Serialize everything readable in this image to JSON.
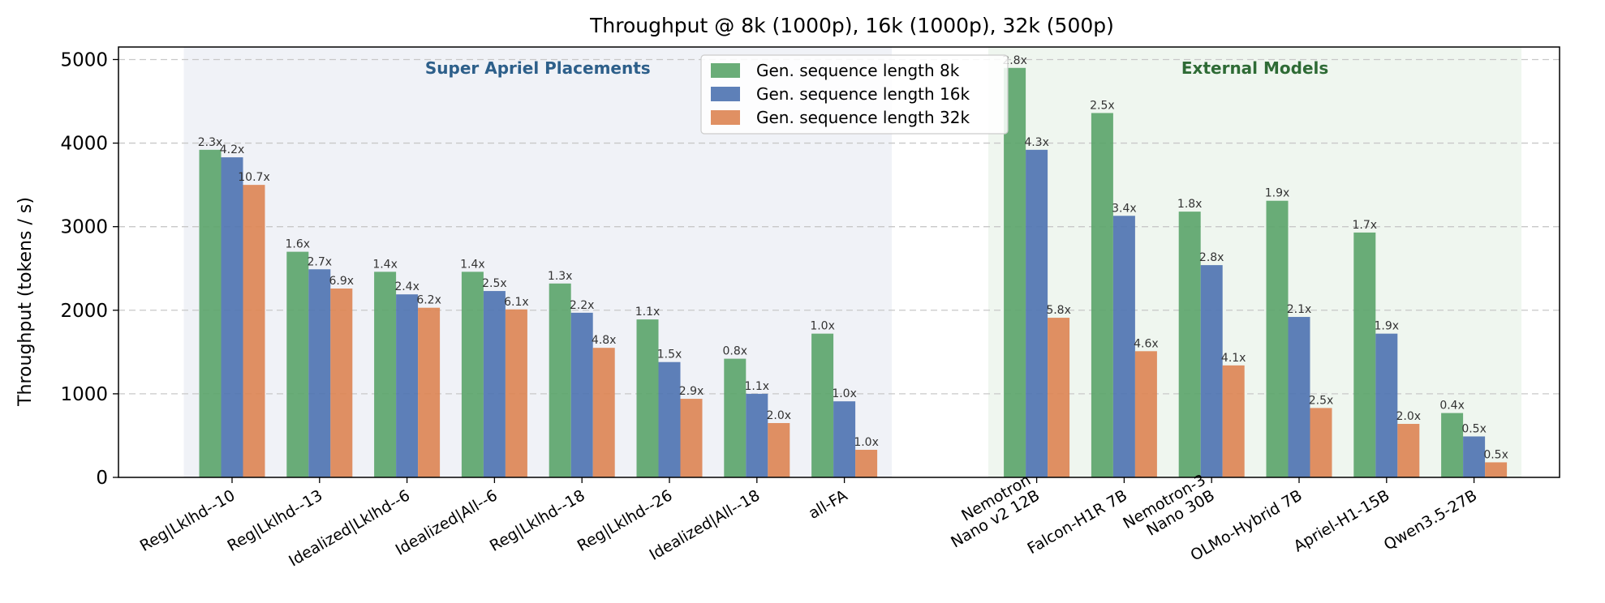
{
  "chart_data": {
    "type": "bar",
    "title": "Throughput @ 8k (1000p), 16k (1000p), 32k (500p)",
    "xlabel": "",
    "ylabel": "Throughput (tokens / s)",
    "ylim": [
      0,
      5150
    ],
    "yticks": [
      0,
      1000,
      2000,
      3000,
      4000,
      5000
    ],
    "grid": "horizontal dashed",
    "legend_position": "top-center",
    "groups": [
      {
        "label": "Super Apriel Placements",
        "color": "#2d5f8a",
        "background": "#e9ecf4",
        "start": 0,
        "end": 7
      },
      {
        "label": "External Models",
        "color": "#2e6b35",
        "background": "#e8f2e8",
        "start": 8,
        "end": 13
      }
    ],
    "categories": [
      "Reg|Lklhd--10",
      "Reg|Lklhd--13",
      "Idealized|Lklhd--6",
      "Idealized|All--6",
      "Reg|Lklhd--18",
      "Reg|Lklhd--26",
      "Idealized|All--18",
      "all-FA",
      "Nemotron\nNano v2 12B",
      "Falcon-H1R 7B",
      "Nemotron-3\nNano 30B",
      "OLMo-Hybrid 7B",
      "Apriel-H1-15B",
      "Qwen3.5-27B"
    ],
    "series": [
      {
        "name": "Gen. sequence length  8k",
        "color": "#5aa469",
        "values": [
          3920,
          2700,
          2460,
          2460,
          2320,
          1890,
          1420,
          1720,
          4900,
          4360,
          3180,
          3310,
          2930,
          770
        ],
        "labels": [
          "2.3x",
          "1.6x",
          "1.4x",
          "1.4x",
          "1.3x",
          "1.1x",
          "0.8x",
          "1.0x",
          "2.8x",
          "2.5x",
          "1.8x",
          "1.9x",
          "1.7x",
          "0.4x"
        ]
      },
      {
        "name": "Gen. sequence length  16k",
        "color": "#4c72b0",
        "values": [
          3830,
          2490,
          2190,
          2230,
          1970,
          1380,
          1000,
          910,
          3920,
          3130,
          2540,
          1920,
          1720,
          490
        ],
        "labels": [
          "4.2x",
          "2.7x",
          "2.4x",
          "2.5x",
          "2.2x",
          "1.5x",
          "1.1x",
          "1.0x",
          "4.3x",
          "3.4x",
          "2.8x",
          "2.1x",
          "1.9x",
          "0.5x"
        ]
      },
      {
        "name": "Gen. sequence length  32k",
        "color": "#dd8452",
        "values": [
          3500,
          2260,
          2030,
          2010,
          1550,
          940,
          650,
          330,
          1910,
          1510,
          1340,
          830,
          640,
          180
        ],
        "labels": [
          "10.7x",
          "6.9x",
          "6.2x",
          "6.1x",
          "4.8x",
          "2.9x",
          "2.0x",
          "1.0x",
          "5.8x",
          "4.6x",
          "4.1x",
          "2.5x",
          "2.0x",
          "0.5x"
        ]
      }
    ]
  }
}
